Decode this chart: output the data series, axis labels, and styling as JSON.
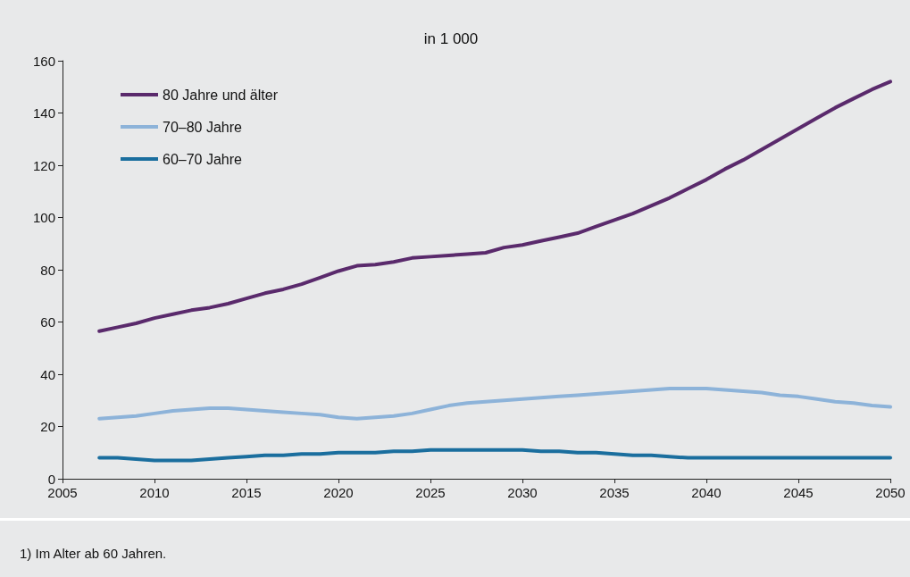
{
  "chart_data": {
    "type": "line",
    "title": "in 1 000",
    "x": [
      2007,
      2008,
      2009,
      2010,
      2011,
      2012,
      2013,
      2014,
      2015,
      2016,
      2017,
      2018,
      2019,
      2020,
      2021,
      2022,
      2023,
      2024,
      2025,
      2026,
      2027,
      2028,
      2029,
      2030,
      2031,
      2032,
      2033,
      2034,
      2035,
      2036,
      2037,
      2038,
      2039,
      2040,
      2041,
      2042,
      2043,
      2044,
      2045,
      2046,
      2047,
      2048,
      2049,
      2050
    ],
    "series": [
      {
        "name": "80 Jahre und älter",
        "color": "#5a2a6c",
        "values": [
          56.5,
          58,
          59.5,
          61.5,
          63,
          64.5,
          65.5,
          67,
          69,
          71,
          72.5,
          74.5,
          77,
          79.5,
          81.5,
          82,
          83,
          84.5,
          85,
          85.5,
          86,
          86.5,
          88.5,
          89.5,
          91,
          92.5,
          94,
          96.5,
          99,
          101.5,
          104.5,
          107.5,
          111,
          114.5,
          118.5,
          122,
          126,
          130,
          134,
          138,
          142,
          145.5,
          149,
          152
        ]
      },
      {
        "name": "70–80 Jahre",
        "color": "#8db3d9",
        "values": [
          23,
          23.5,
          24,
          25,
          26,
          26.5,
          27,
          27,
          26.5,
          26,
          25.5,
          25,
          24.5,
          23.5,
          23,
          23.5,
          24,
          25,
          26.5,
          28,
          29,
          29.5,
          30,
          30.5,
          31,
          31.5,
          32,
          32.5,
          33,
          33.5,
          34,
          34.5,
          34.5,
          34.5,
          34,
          33.5,
          33,
          32,
          31.5,
          30.5,
          29.5,
          29,
          28,
          27.5
        ]
      },
      {
        "name": "60–70 Jahre",
        "color": "#1a6e9e",
        "values": [
          8,
          8,
          7.5,
          7,
          7,
          7,
          7.5,
          8,
          8.5,
          9,
          9,
          9.5,
          9.5,
          10,
          10,
          10,
          10.5,
          10.5,
          11,
          11,
          11,
          11,
          11,
          11,
          10.5,
          10.5,
          10,
          10,
          9.5,
          9,
          9,
          8.5,
          8,
          8,
          8,
          8,
          8,
          8,
          8,
          8,
          8,
          8,
          8,
          8
        ]
      }
    ],
    "xlim": [
      2005,
      2050
    ],
    "xticks": [
      2005,
      2010,
      2015,
      2020,
      2025,
      2030,
      2035,
      2040,
      2045,
      2050
    ],
    "ylim": [
      0,
      160
    ],
    "yticks": [
      0,
      20,
      40,
      60,
      80,
      100,
      120,
      140,
      160
    ],
    "grid": false,
    "legend": "top left",
    "marker": "none",
    "line_style": "solid",
    "annotations": [
      "1) Im Alter ab 60 Jahren."
    ]
  }
}
